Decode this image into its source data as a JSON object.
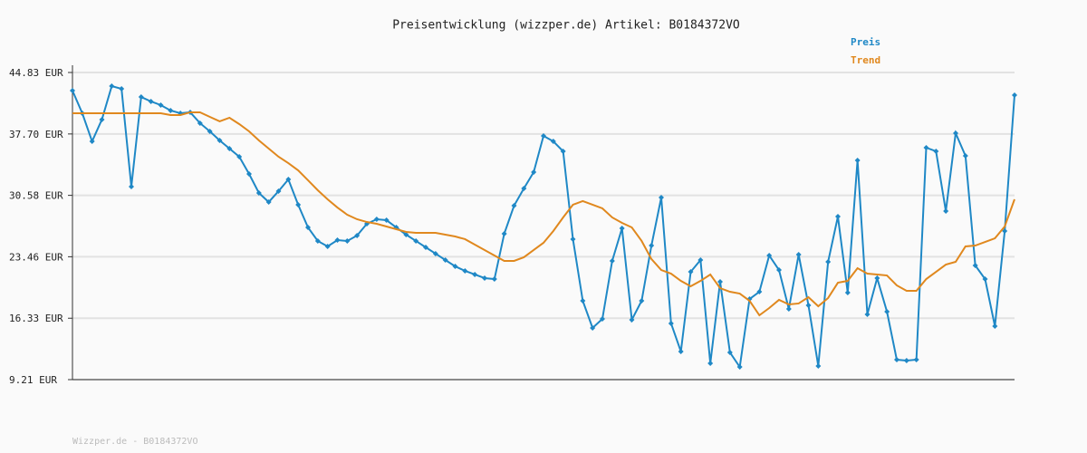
{
  "chart_data": {
    "type": "line",
    "title": "Preisentwicklung (wizzper.de) Artikel: B0184372VO",
    "footer": "Wizzper.de - B0184372VO",
    "ylim": [
      9.21,
      44.83
    ],
    "yticks": [
      {
        "value": 9.21,
        "label": "9.21 EUR"
      },
      {
        "value": 16.33,
        "label": "16.33 EUR"
      },
      {
        "value": 23.46,
        "label": "23.46 EUR"
      },
      {
        "value": 30.58,
        "label": "30.58 EUR"
      },
      {
        "value": 37.7,
        "label": "37.70 EUR"
      },
      {
        "value": 44.83,
        "label": "44.83 EUR"
      }
    ],
    "grid": true,
    "legend": "top-right",
    "series": [
      {
        "name": "Preis",
        "color": "#1f88c6",
        "markers": true,
        "values": [
          42.73,
          40.1,
          36.84,
          39.37,
          43.25,
          42.94,
          31.59,
          41.99,
          41.47,
          41.05,
          40.42,
          40.1,
          40.21,
          38.95,
          38.0,
          36.95,
          36.0,
          35.06,
          33.06,
          30.86,
          29.8,
          31.07,
          32.43,
          29.49,
          26.86,
          25.29,
          24.66,
          25.39,
          25.29,
          25.92,
          27.28,
          27.81,
          27.7,
          26.86,
          26.02,
          25.29,
          24.55,
          23.82,
          23.08,
          22.35,
          21.82,
          21.4,
          20.98,
          20.87,
          26.13,
          29.38,
          31.38,
          33.27,
          37.48,
          36.84,
          35.69,
          25.5,
          18.35,
          15.2,
          16.25,
          22.98,
          26.76,
          16.15,
          18.35,
          24.76,
          30.33,
          15.73,
          12.47,
          21.71,
          23.08,
          11.1,
          20.56,
          12.36,
          10.68,
          18.56,
          19.4,
          23.61,
          21.92,
          17.41,
          23.71,
          17.83,
          10.79,
          22.87,
          28.12,
          19.3,
          34.64,
          16.78,
          20.98,
          17.09,
          11.52,
          11.42,
          11.52,
          36.11,
          35.69,
          28.75,
          37.79,
          35.16,
          22.45,
          20.87,
          15.41,
          26.44,
          42.2
        ]
      },
      {
        "name": "Trend",
        "color": "#e0881e",
        "markers": false,
        "values": [
          40.1,
          40.1,
          40.1,
          40.1,
          40.1,
          40.1,
          40.1,
          40.1,
          40.1,
          40.1,
          39.89,
          39.89,
          40.21,
          40.21,
          39.68,
          39.16,
          39.58,
          38.84,
          38.0,
          36.95,
          36.0,
          35.06,
          34.32,
          33.48,
          32.33,
          31.17,
          30.12,
          29.17,
          28.33,
          27.81,
          27.49,
          27.28,
          26.97,
          26.65,
          26.34,
          26.23,
          26.23,
          26.23,
          26.02,
          25.81,
          25.5,
          24.87,
          24.24,
          23.61,
          22.98,
          22.98,
          23.4,
          24.24,
          25.08,
          26.44,
          28.02,
          29.49,
          29.91,
          29.49,
          29.07,
          28.02,
          27.39,
          26.86,
          25.29,
          23.19,
          21.92,
          21.5,
          20.66,
          20.03,
          20.66,
          21.4,
          19.82,
          19.4,
          19.19,
          18.35,
          16.67,
          17.51,
          18.46,
          17.93,
          18.04,
          18.77,
          17.72,
          18.67,
          20.45,
          20.66,
          22.13,
          21.5,
          21.4,
          21.29,
          20.14,
          19.51,
          19.51,
          20.87,
          21.71,
          22.55,
          22.87,
          24.66,
          24.76,
          25.18,
          25.6,
          26.97,
          30.12
        ]
      }
    ]
  }
}
